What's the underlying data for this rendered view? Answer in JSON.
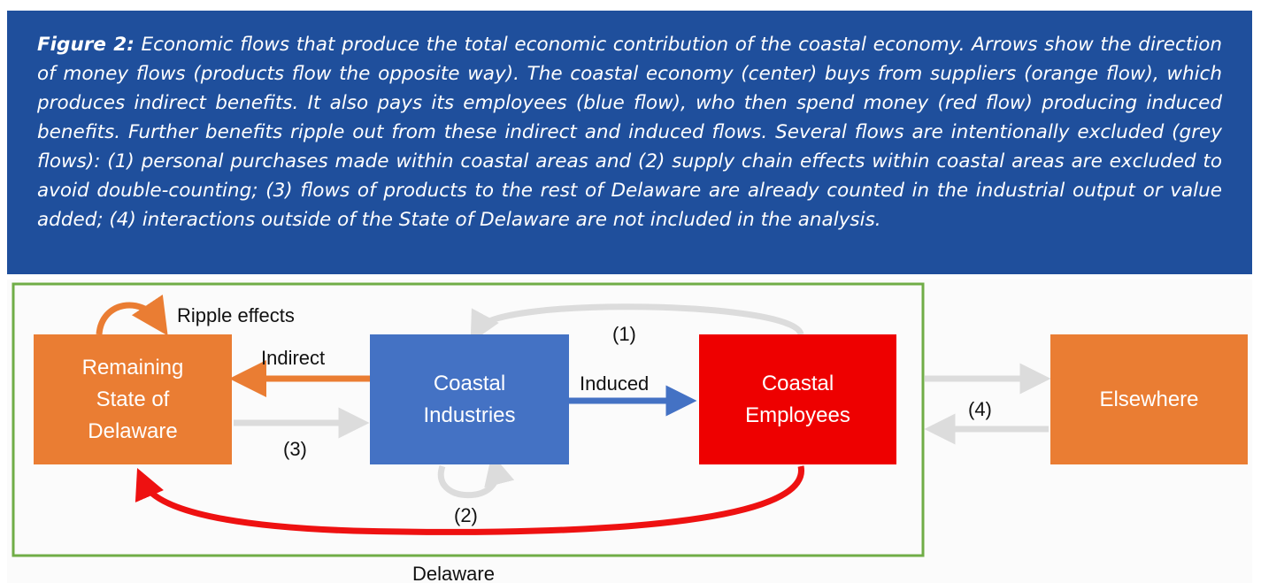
{
  "caption": {
    "label": "Figure 2:",
    "text": "Economic flows that produce the total economic contribution of the coastal economy. Arrows show the direction of money flows (products flow the opposite way). The coastal economy (center) buys from suppliers (orange flow), which produces indirect benefits. It also pays its employees (blue flow), who then spend money (red flow) producing induced benefits. Further benefits ripple out from these indirect and induced flows. Several flows are intentionally excluded (grey flows): (1) personal purchases made within coastal areas and (2) supply chain effects within coastal areas are excluded to avoid double-counting; (3) flows of products to the rest of Delaware are already counted in the industrial output or value added; (4) interactions outside of the State of Delaware are not included in the analysis."
  },
  "nodes": [
    {
      "lines": [
        "Remaining",
        "State of",
        "Delaware"
      ]
    },
    {
      "lines": [
        "Coastal",
        "Industries"
      ]
    },
    {
      "lines": [
        "Coastal",
        "Employees"
      ]
    },
    {
      "lines": [
        "Elsewhere"
      ]
    }
  ],
  "edges": {
    "ripple": "Ripple effects",
    "indirect": "Indirect",
    "induced": "Induced",
    "flow1": "(1)",
    "flow2": "(2)",
    "flow3": "(3)",
    "flow4": "(4)"
  },
  "region": "Delaware"
}
